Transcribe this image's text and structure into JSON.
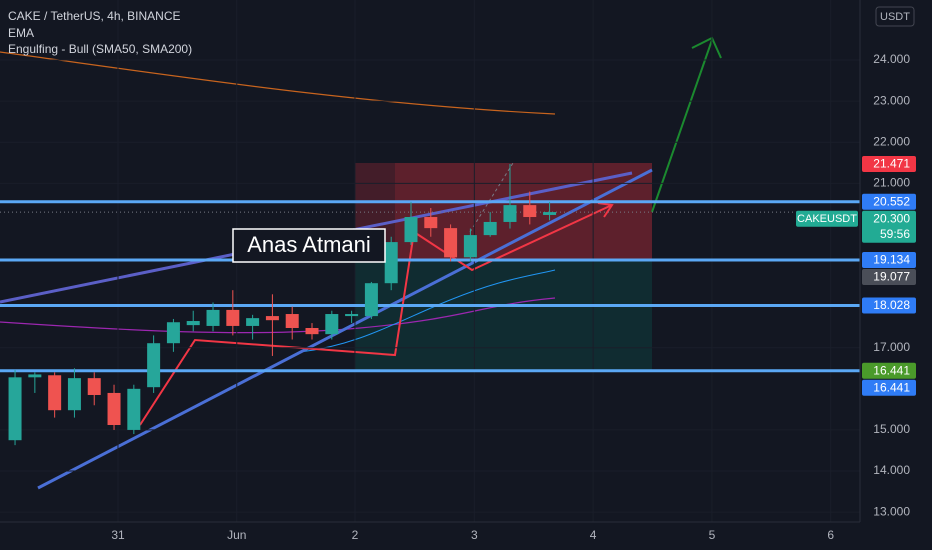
{
  "chart_data": {
    "type": "candlestick",
    "title": "CAKE / TetherUS, 4h, BINANCE",
    "indicators": [
      "EMA",
      "Engulfing - Bull (SMA50, SMA200)"
    ],
    "currency": "USDT",
    "annotation": "Anas Atmani",
    "up_color": "#26a69a",
    "down_color": "#ef5350",
    "candles": [
      {
        "open": 14.75,
        "high": 16.46,
        "low": 14.63,
        "close": 16.28
      },
      {
        "open": 16.28,
        "high": 16.4,
        "low": 15.9,
        "close": 16.35
      },
      {
        "open": 16.33,
        "high": 16.4,
        "low": 15.3,
        "close": 15.48
      },
      {
        "open": 15.48,
        "high": 16.5,
        "low": 15.3,
        "close": 16.26
      },
      {
        "open": 16.26,
        "high": 16.4,
        "low": 15.6,
        "close": 15.85
      },
      {
        "open": 15.9,
        "high": 16.1,
        "low": 15.0,
        "close": 15.12
      },
      {
        "open": 15.0,
        "high": 16.1,
        "low": 14.9,
        "close": 16.0
      },
      {
        "open": 16.04,
        "high": 17.3,
        "low": 15.9,
        "close": 17.11
      },
      {
        "open": 17.11,
        "high": 17.7,
        "low": 16.9,
        "close": 17.62
      },
      {
        "open": 17.55,
        "high": 17.9,
        "low": 17.4,
        "close": 17.65
      },
      {
        "open": 17.53,
        "high": 18.1,
        "low": 17.4,
        "close": 17.92
      },
      {
        "open": 17.92,
        "high": 18.4,
        "low": 17.3,
        "close": 17.53
      },
      {
        "open": 17.53,
        "high": 17.8,
        "low": 17.2,
        "close": 17.72
      },
      {
        "open": 17.77,
        "high": 18.3,
        "low": 16.8,
        "close": 17.67
      },
      {
        "open": 17.82,
        "high": 18.0,
        "low": 17.2,
        "close": 17.48
      },
      {
        "open": 17.48,
        "high": 17.6,
        "low": 17.2,
        "close": 17.33
      },
      {
        "open": 17.33,
        "high": 17.9,
        "low": 17.2,
        "close": 17.82
      },
      {
        "open": 17.77,
        "high": 17.9,
        "low": 17.6,
        "close": 17.82
      },
      {
        "open": 17.77,
        "high": 18.6,
        "low": 17.7,
        "close": 18.57
      },
      {
        "open": 18.57,
        "high": 19.7,
        "low": 18.4,
        "close": 19.57
      },
      {
        "open": 19.57,
        "high": 20.55,
        "low": 19.5,
        "close": 20.18
      },
      {
        "open": 20.18,
        "high": 20.4,
        "low": 19.7,
        "close": 19.91
      },
      {
        "open": 19.91,
        "high": 20.0,
        "low": 19.1,
        "close": 19.2
      },
      {
        "open": 19.2,
        "high": 19.9,
        "low": 19.1,
        "close": 19.74
      },
      {
        "open": 19.74,
        "high": 20.3,
        "low": 19.7,
        "close": 20.06
      },
      {
        "open": 20.06,
        "high": 21.47,
        "low": 19.9,
        "close": 20.47
      },
      {
        "open": 20.47,
        "high": 20.8,
        "low": 20.0,
        "close": 20.18
      },
      {
        "open": 20.23,
        "high": 20.55,
        "low": 20.1,
        "close": 20.3
      }
    ],
    "xlim": [
      -0.76,
      42.68
    ],
    "xticks": [
      {
        "value": 5.2,
        "label": "31"
      },
      {
        "value": 11.2,
        "label": "Jun"
      },
      {
        "value": 17.17,
        "label": "2"
      },
      {
        "value": 23.2,
        "label": "3"
      },
      {
        "value": 29.2,
        "label": "4"
      },
      {
        "value": 35.2,
        "label": "5"
      },
      {
        "value": 41.2,
        "label": "6"
      }
    ],
    "ylim": [
      12.76,
      25.46
    ],
    "yticks": [
      {
        "value": 13,
        "label": "13.000"
      },
      {
        "value": 14,
        "label": "14.000"
      },
      {
        "value": 15,
        "label": "15.000"
      },
      {
        "value": 17,
        "label": "17.000"
      },
      {
        "value": 21,
        "label": "21.000"
      },
      {
        "value": 22,
        "label": "22.000"
      },
      {
        "value": 23,
        "label": "23.000"
      },
      {
        "value": 24,
        "label": "24.000"
      }
    ],
    "levels": [
      20.552,
      19.134,
      18.028,
      16.441
    ],
    "level_color": "#5ba8f5",
    "price_labels": [
      {
        "value": 21.471,
        "label": "21.471",
        "color": "#f23645"
      },
      {
        "value": 20.552,
        "label": "20.552",
        "color": "#2f7cf6"
      },
      {
        "value": 20.3,
        "label": "20.300",
        "color": "#22ab94",
        "tag": "CAKEUSDT",
        "timer": "59:56"
      },
      {
        "value": 19.134,
        "label": "19.134",
        "color": "#2f7cf6"
      },
      {
        "value": 19.077,
        "label": "19.077",
        "color": "#4a4e58"
      },
      {
        "value": 18.028,
        "label": "18.028",
        "color": "#2f7cf6"
      },
      {
        "value": 16.441,
        "label": "16.441",
        "color": "#4a9a2a"
      },
      {
        "value": 16.441,
        "label": "16.441",
        "color": "#2f7cf6"
      }
    ]
  }
}
